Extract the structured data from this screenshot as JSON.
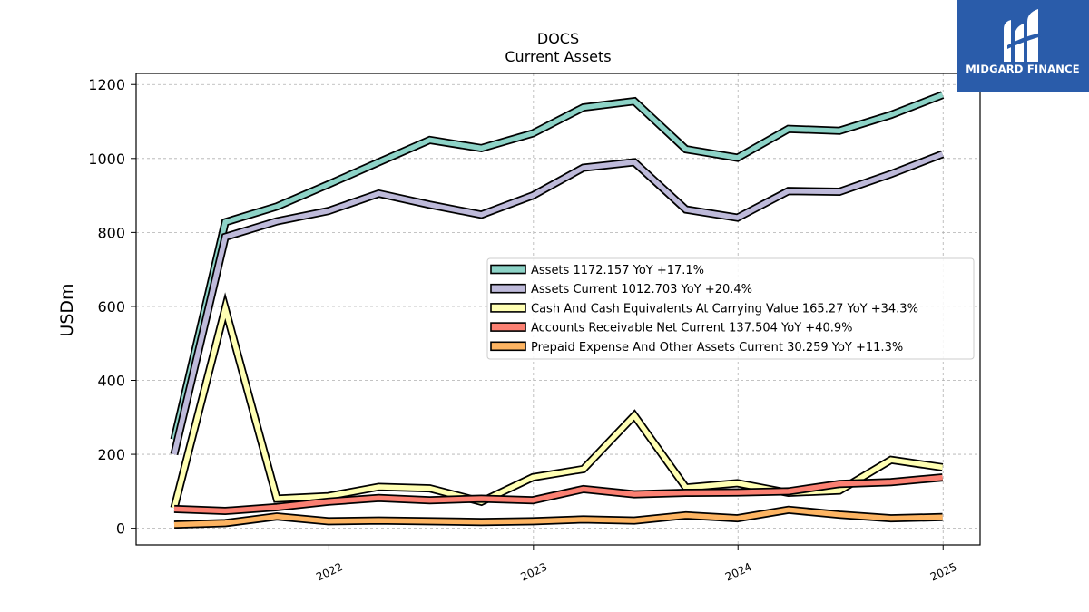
{
  "title": "DOCS",
  "subtitle": "Current  Assets",
  "logo_text": "MIDGARD FINANCE",
  "chart_data": {
    "type": "line",
    "title": "DOCS",
    "subtitle": "Current  Assets",
    "xlabel": "",
    "ylabel": "USDm",
    "ylim": [
      -45,
      1230
    ],
    "yticks": [
      0,
      200,
      400,
      600,
      800,
      1000,
      1200
    ],
    "xticks": [
      "2022",
      "2023",
      "2024",
      "2025"
    ],
    "xlim": [
      "2021-01-22",
      "2025-03-08"
    ],
    "grid": true,
    "legend_position": "center-right",
    "x": [
      "2021-03-31",
      "2021-06-30",
      "2021-09-30",
      "2021-12-31",
      "2022-03-31",
      "2022-06-30",
      "2022-09-30",
      "2022-12-31",
      "2023-03-31",
      "2023-06-30",
      "2023-09-30",
      "2023-12-31",
      "2024-03-31",
      "2024-06-30",
      "2024-09-30",
      "2024-12-31"
    ],
    "series": [
      {
        "name": "Assets",
        "label": "Assets  1172.157 YoY +17.1%",
        "color": "#8dd3c7",
        "values": [
          240,
          828,
          870,
          930,
          990,
          1050,
          1028,
          1068,
          1138,
          1155,
          1025,
          1002,
          1080,
          1075,
          1118,
          1172
        ]
      },
      {
        "name": "Assets Current",
        "label": "Assets Current  1012.703 YoY +20.4%",
        "color": "#bebada",
        "values": [
          200,
          788,
          830,
          858,
          905,
          875,
          848,
          900,
          975,
          990,
          862,
          840,
          912,
          910,
          958,
          1012
        ]
      },
      {
        "name": "Cash And Cash Equivalents At Carrying Value",
        "label": "Cash And Cash Equivalents At Carrying Value  165.27 YoY +34.3%",
        "color": "#ffffb3",
        "values": [
          55,
          595,
          80,
          87,
          112,
          108,
          72,
          138,
          160,
          305,
          110,
          122,
          96,
          102,
          185,
          165
        ]
      },
      {
        "name": "Accounts Receivable Net Current",
        "label": "Accounts Receivable Net Current  137.504 YoY +40.9%",
        "color": "#fb8072",
        "values": [
          52,
          47,
          57,
          72,
          82,
          76,
          80,
          76,
          106,
          92,
          96,
          97,
          100,
          120,
          125,
          137.5
        ]
      },
      {
        "name": "Prepaid Expense And Other Assets Current",
        "label": "Prepaid Expense And Other Assets Current  30.259 YoY +11.3%",
        "color": "#fdb462",
        "values": [
          10,
          14,
          32,
          19,
          21,
          19,
          17,
          19,
          24,
          21,
          35,
          27,
          50,
          37,
          27,
          30.3
        ]
      }
    ]
  }
}
